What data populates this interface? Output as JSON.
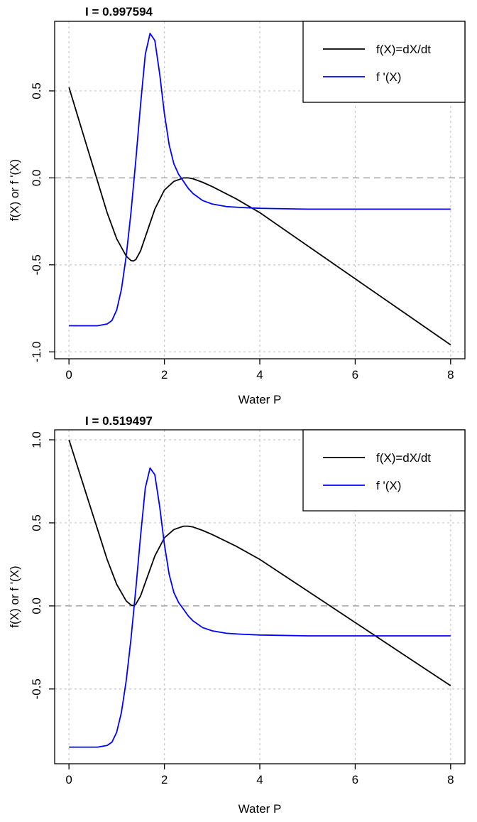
{
  "colors": {
    "background": "#ffffff",
    "series_f": "#000000",
    "series_fprime": "#0000ff",
    "grid": "#c8c8c8",
    "zero_line": "#aaaaaa"
  },
  "chart_data": [
    {
      "type": "line",
      "title": "I = 0.997594",
      "xlabel": "Water P",
      "ylabel": "f(X) or f '(X)",
      "xlim": [
        -0.3,
        8.3
      ],
      "ylim": [
        -1.04,
        0.9
      ],
      "x_ticks": [
        0,
        2,
        4,
        6,
        8
      ],
      "y_ticks": [
        -1.0,
        -0.5,
        0.0,
        0.5
      ],
      "x_tick_labels": [
        "0",
        "2",
        "4",
        "6",
        "8"
      ],
      "y_tick_labels": [
        "-1.0",
        "-0.5",
        "0.0",
        "0.5"
      ],
      "grid": true,
      "zero_line": true,
      "legend_position": "top-right",
      "legend": [
        "f(X)=dX/dt",
        "f '(X)"
      ],
      "series": [
        {
          "name": "f(X)=dX/dt",
          "color": "#000000",
          "x": [
            0,
            0.2,
            0.4,
            0.6,
            0.8,
            1.0,
            1.2,
            1.3,
            1.35,
            1.4,
            1.5,
            1.6,
            1.8,
            2.0,
            2.2,
            2.4,
            2.5,
            2.6,
            2.8,
            3.0,
            3.5,
            4.0,
            5.0,
            6.0,
            7.0,
            8.0
          ],
          "y": [
            0.52,
            0.34,
            0.16,
            -0.02,
            -0.2,
            -0.35,
            -0.45,
            -0.475,
            -0.478,
            -0.47,
            -0.42,
            -0.34,
            -0.18,
            -0.07,
            -0.02,
            0.0,
            0.0,
            -0.005,
            -0.025,
            -0.05,
            -0.12,
            -0.2,
            -0.39,
            -0.58,
            -0.77,
            -0.96
          ]
        },
        {
          "name": "f '(X)",
          "color": "#0000ff",
          "x": [
            0,
            0.6,
            0.8,
            0.9,
            1.0,
            1.1,
            1.2,
            1.3,
            1.4,
            1.5,
            1.6,
            1.7,
            1.8,
            1.9,
            2.0,
            2.1,
            2.2,
            2.3,
            2.4,
            2.5,
            2.6,
            2.8,
            3.0,
            3.3,
            3.6,
            4.0,
            5.0,
            6.0,
            7.0,
            8.0
          ],
          "y": [
            -0.85,
            -0.85,
            -0.84,
            -0.82,
            -0.76,
            -0.64,
            -0.45,
            -0.2,
            0.1,
            0.42,
            0.71,
            0.83,
            0.79,
            0.6,
            0.37,
            0.19,
            0.08,
            0.02,
            -0.02,
            -0.06,
            -0.09,
            -0.13,
            -0.15,
            -0.165,
            -0.17,
            -0.175,
            -0.18,
            -0.18,
            -0.18,
            -0.18
          ]
        }
      ]
    },
    {
      "type": "line",
      "title": "I = 0.519497",
      "xlabel": "Water P",
      "ylabel": "f(X) or f '(X)",
      "xlim": [
        -0.3,
        8.3
      ],
      "ylim": [
        -0.95,
        1.06
      ],
      "x_ticks": [
        0,
        2,
        4,
        6,
        8
      ],
      "y_ticks": [
        -0.5,
        0.0,
        0.5,
        1.0
      ],
      "x_tick_labels": [
        "0",
        "2",
        "4",
        "6",
        "8"
      ],
      "y_tick_labels": [
        "-0.5",
        "0.0",
        "0.5",
        "1.0"
      ],
      "grid": true,
      "zero_line": true,
      "legend_position": "top-right",
      "legend": [
        "f(X)=dX/dt",
        "f '(X)"
      ],
      "series": [
        {
          "name": "f(X)=dX/dt",
          "color": "#000000",
          "x": [
            0,
            0.2,
            0.4,
            0.6,
            0.8,
            1.0,
            1.2,
            1.3,
            1.35,
            1.4,
            1.5,
            1.6,
            1.8,
            2.0,
            2.2,
            2.4,
            2.5,
            2.6,
            2.8,
            3.0,
            3.5,
            4.0,
            5.0,
            6.0,
            7.0,
            8.0
          ],
          "y": [
            1.0,
            0.82,
            0.64,
            0.46,
            0.28,
            0.13,
            0.03,
            0.005,
            0.002,
            0.01,
            0.06,
            0.14,
            0.3,
            0.41,
            0.46,
            0.48,
            0.48,
            0.475,
            0.455,
            0.43,
            0.36,
            0.28,
            0.09,
            -0.1,
            -0.29,
            -0.48
          ]
        },
        {
          "name": "f '(X)",
          "color": "#0000ff",
          "x": [
            0,
            0.6,
            0.8,
            0.9,
            1.0,
            1.1,
            1.2,
            1.3,
            1.4,
            1.5,
            1.6,
            1.7,
            1.8,
            1.9,
            2.0,
            2.1,
            2.2,
            2.3,
            2.4,
            2.5,
            2.6,
            2.8,
            3.0,
            3.3,
            3.6,
            4.0,
            5.0,
            6.0,
            7.0,
            8.0
          ],
          "y": [
            -0.85,
            -0.85,
            -0.84,
            -0.82,
            -0.76,
            -0.64,
            -0.45,
            -0.2,
            0.1,
            0.42,
            0.71,
            0.83,
            0.79,
            0.6,
            0.37,
            0.19,
            0.08,
            0.02,
            -0.02,
            -0.06,
            -0.09,
            -0.13,
            -0.15,
            -0.165,
            -0.17,
            -0.175,
            -0.18,
            -0.18,
            -0.18,
            -0.18
          ]
        }
      ]
    }
  ]
}
